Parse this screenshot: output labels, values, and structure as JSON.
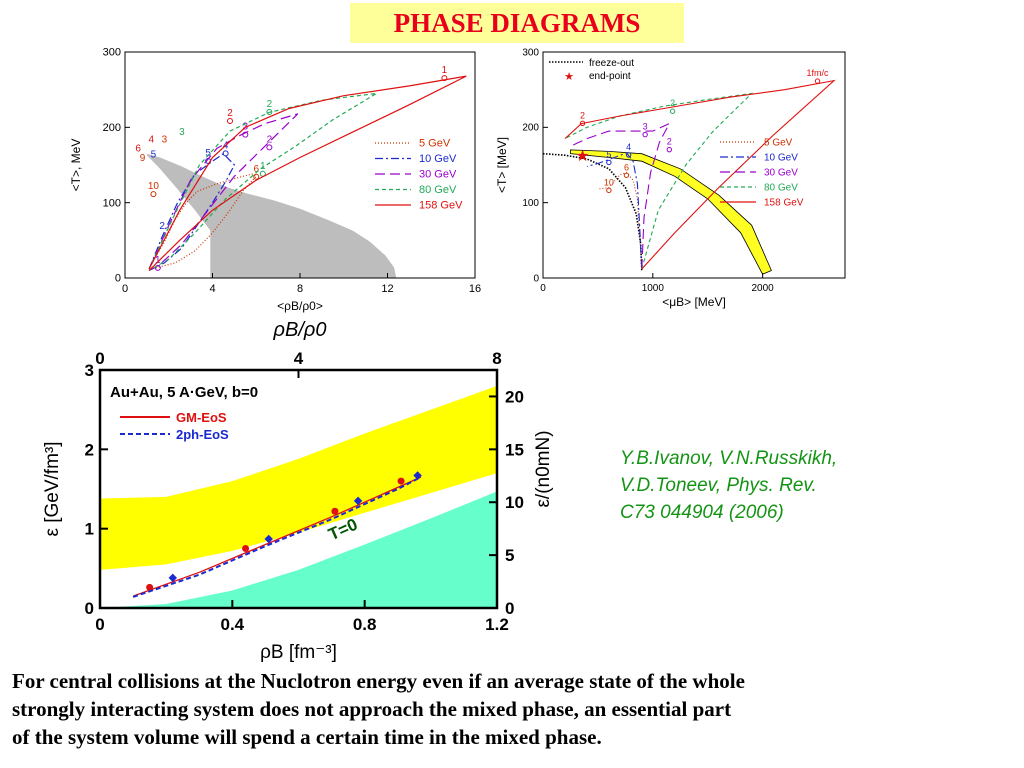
{
  "title": "PHASE DIAGRAMS",
  "citation": [
    "Y.B.Ivanov, V.N.Russkikh,",
    "V.D.Toneev, Phys. Rev.",
    "C73 044904 (2006)"
  ],
  "caption": [
    "For central collisions at the Nuclotron energy even if an average state of the whole",
    "strongly interacting system does not approach the mixed phase, an essential part",
    "of the system volume will spend a certain time in the mixed phase."
  ],
  "chart_data": [
    {
      "type": "line",
      "xlabel": "<ρB/ρ0>",
      "xlabel_big": "ρB/ρ0",
      "ylabel": "<T>, MeV",
      "xlim": [
        0,
        16
      ],
      "ylim": [
        0,
        300
      ],
      "xticks": [
        "0",
        "4",
        "8",
        "12",
        "16"
      ],
      "yticks": [
        "0",
        "100",
        "200",
        "300"
      ],
      "mixed_phase_region": [
        [
          1,
          165
        ],
        [
          1.6,
          160
        ],
        [
          2.6,
          148
        ],
        [
          3.6,
          134
        ],
        [
          4.6,
          121
        ],
        [
          5.6,
          112
        ],
        [
          6.8,
          103
        ],
        [
          8,
          92
        ],
        [
          9.2,
          78
        ],
        [
          10.4,
          63
        ],
        [
          11.2,
          48
        ],
        [
          11.9,
          30
        ],
        [
          12.3,
          14
        ],
        [
          12.4,
          0
        ],
        [
          3.9,
          0
        ],
        [
          3.9,
          63
        ],
        [
          3.2,
          90
        ],
        [
          2.4,
          118
        ],
        [
          1.6,
          145
        ],
        [
          1,
          163
        ]
      ],
      "series": [
        {
          "name": "5 GeV",
          "color": "#cc3300",
          "dash": "1,2",
          "points": [
            [
              1.2,
              18
            ],
            [
              1.8,
              48
            ],
            [
              2.3,
              78
            ],
            [
              2.8,
              100
            ],
            [
              3.3,
              115
            ],
            [
              4.1,
              124
            ],
            [
              5,
              132
            ],
            [
              5.8,
              138
            ],
            [
              6,
              135
            ],
            [
              5.4,
              116
            ],
            [
              4.8,
              90
            ],
            [
              4,
              60
            ],
            [
              3.2,
              36
            ],
            [
              2.3,
              20
            ],
            [
              1.2,
              12
            ]
          ],
          "labels": [
            {
              "t": "6",
              "x": 6,
              "y": 141
            },
            {
              "t": "10",
              "x": 1.3,
              "y": 118
            }
          ]
        },
        {
          "name": "10 GeV",
          "color": "#1a2ad0",
          "dash": "8,3,2,3",
          "points": [
            [
              1.1,
              12
            ],
            [
              1.7,
              55
            ],
            [
              2.4,
              100
            ],
            [
              3.2,
              138
            ],
            [
              4,
              155
            ],
            [
              4.5,
              165
            ],
            [
              5,
              150
            ],
            [
              4.6,
              128
            ],
            [
              4,
              100
            ],
            [
              3.3,
              70
            ],
            [
              2.6,
              40
            ],
            [
              1.8,
              20
            ],
            [
              1.1,
              10
            ]
          ],
          "labels": [
            {
              "t": "4",
              "x": 4.6,
              "y": 172
            },
            {
              "t": "5",
              "x": 3.8,
              "y": 162
            }
          ]
        },
        {
          "name": "30 GeV",
          "color": "#9900cc",
          "dash": "10,5",
          "points": [
            [
              1.1,
              12
            ],
            [
              2,
              70
            ],
            [
              3,
              130
            ],
            [
              4.2,
              172
            ],
            [
              5.3,
              190
            ],
            [
              6.4,
              205
            ],
            [
              7.9,
              218
            ],
            [
              6.5,
              178
            ],
            [
              5,
              135
            ],
            [
              3.8,
              90
            ],
            [
              2.6,
              45
            ],
            [
              1.6,
              18
            ],
            [
              1.1,
              10
            ]
          ],
          "labels": [
            {
              "t": "3",
              "x": 5.5,
              "y": 197
            },
            {
              "t": "2",
              "x": 6.6,
              "y": 180
            },
            {
              "t": "1",
              "x": 1.5,
              "y": 20
            }
          ]
        },
        {
          "name": "80 GeV",
          "color": "#22aa55",
          "dash": "4,3",
          "points": [
            [
              1.1,
              12
            ],
            [
              2.2,
              80
            ],
            [
              3.4,
              150
            ],
            [
              4.8,
              195
            ],
            [
              6.6,
              220
            ],
            [
              9,
              236
            ],
            [
              11.5,
              245
            ],
            [
              9.5,
              210
            ],
            [
              7.8,
              175
            ],
            [
              6.2,
              145
            ],
            [
              4.6,
              105
            ],
            [
              3.2,
              60
            ],
            [
              2,
              25
            ],
            [
              1.1,
              10
            ]
          ],
          "labels": [
            {
              "t": "2",
              "x": 6.6,
              "y": 227
            },
            {
              "t": "1",
              "x": 6.3,
              "y": 145
            }
          ]
        },
        {
          "name": "158 GeV",
          "color": "#e01010",
          "dash": "",
          "points": [
            [
              1.1,
              12
            ],
            [
              2.5,
              90
            ],
            [
              4,
              160
            ],
            [
              5.5,
              200
            ],
            [
              7.5,
              225
            ],
            [
              10,
              242
            ],
            [
              13,
              255
            ],
            [
              15.6,
              268
            ],
            [
              13,
              230
            ],
            [
              10.5,
              195
            ],
            [
              8,
              160
            ],
            [
              6,
              130
            ],
            [
              4,
              90
            ],
            [
              2.5,
              50
            ],
            [
              1.1,
              10
            ]
          ],
          "labels": [
            {
              "t": "1",
              "x": 14.6,
              "y": 272
            },
            {
              "t": "2",
              "x": 4.8,
              "y": 215
            }
          ]
        }
      ],
      "label_points": [
        {
          "t": "3",
          "x": 2.6,
          "y": 190,
          "c": "#22aa55"
        },
        {
          "t": "4",
          "x": 1.2,
          "y": 180,
          "c": "#e01010"
        },
        {
          "t": "5",
          "x": 1.3,
          "y": 160,
          "c": "#1a2ad0"
        },
        {
          "t": "9",
          "x": 0.8,
          "y": 155,
          "c": "#cc3300"
        },
        {
          "t": "6",
          "x": 0.6,
          "y": 168,
          "c": "#e01010"
        },
        {
          "t": "3",
          "x": 1.8,
          "y": 180,
          "c": "#cc3300"
        },
        {
          "t": "2",
          "x": 1.7,
          "y": 65,
          "c": "#1a2ad0"
        }
      ]
    },
    {
      "type": "line",
      "xlabel": "<μB> [MeV]",
      "ylabel": "<T> [MeV]",
      "xlim": [
        0,
        2750
      ],
      "ylim": [
        0,
        300
      ],
      "xticks": [
        "0",
        "1000",
        "2000"
      ],
      "yticks": [
        "0",
        "100",
        "200",
        "300"
      ],
      "legend_extra": [
        {
          "name": "freeze-out",
          "style": "dotted"
        },
        {
          "name": "end-point",
          "style": "star"
        }
      ],
      "series": [
        {
          "name": "5 GeV",
          "color": "#cc3300",
          "dash": "1,2",
          "points": [
            [
              900,
              12
            ],
            [
              880,
              60
            ],
            [
              860,
              105
            ],
            [
              820,
              130
            ],
            [
              760,
              140
            ],
            [
              700,
              137
            ],
            [
              600,
              120
            ],
            [
              500,
              118
            ]
          ],
          "labels": [
            {
              "t": "6",
              "x": 760,
              "y": 143
            },
            {
              "t": "10",
              "x": 600,
              "y": 123
            }
          ]
        },
        {
          "name": "10 GeV",
          "color": "#1a2ad0",
          "dash": "8,3,2,3",
          "points": [
            [
              900,
              12
            ],
            [
              880,
              70
            ],
            [
              860,
              125
            ],
            [
              820,
              155
            ],
            [
              760,
              166
            ],
            [
              650,
              160
            ],
            [
              500,
              152
            ],
            [
              400,
              148
            ]
          ],
          "labels": [
            {
              "t": "4",
              "x": 780,
              "y": 170
            },
            {
              "t": "5",
              "x": 600,
              "y": 160
            }
          ]
        },
        {
          "name": "30 GeV",
          "color": "#9900cc",
          "dash": "10,5",
          "points": [
            [
              900,
              12
            ],
            [
              920,
              80
            ],
            [
              980,
              140
            ],
            [
              1060,
              180
            ],
            [
              1150,
              205
            ],
            [
              1000,
              195
            ],
            [
              800,
              195
            ],
            [
              600,
              195
            ],
            [
              400,
              185
            ],
            [
              250,
              175
            ]
          ],
          "labels": [
            {
              "t": "3",
              "x": 930,
              "y": 197
            },
            {
              "t": "2",
              "x": 1150,
              "y": 177
            }
          ]
        },
        {
          "name": "80 GeV",
          "color": "#22aa55",
          "dash": "4,3",
          "points": [
            [
              900,
              12
            ],
            [
              1050,
              90
            ],
            [
              1300,
              150
            ],
            [
              1550,
              195
            ],
            [
              1900,
              245
            ],
            [
              1500,
              237
            ],
            [
              1100,
              228
            ],
            [
              700,
              215
            ],
            [
              400,
              200
            ],
            [
              200,
              185
            ]
          ],
          "labels": [
            {
              "t": "2",
              "x": 1180,
              "y": 228
            }
          ]
        },
        {
          "name": "158 GeV",
          "color": "#e01010",
          "dash": "",
          "points": [
            [
              900,
              12
            ],
            [
              1200,
              60
            ],
            [
              1600,
              120
            ],
            [
              2100,
              190
            ],
            [
              2650,
              262
            ],
            [
              2200,
              250
            ],
            [
              1700,
              240
            ],
            [
              1100,
              225
            ],
            [
              700,
              215
            ],
            [
              350,
              205
            ],
            [
              200,
              185
            ]
          ],
          "labels": [
            {
              "t": "1fm/c",
              "x": 2500,
              "y": 268
            },
            {
              "t": "2",
              "x": 360,
              "y": 212
            }
          ]
        }
      ],
      "freeze_out": [
        [
          0,
          165
        ],
        [
          200,
          163
        ],
        [
          400,
          158
        ],
        [
          600,
          145
        ],
        [
          750,
          120
        ],
        [
          850,
          85
        ],
        [
          890,
          45
        ],
        [
          900,
          10
        ]
      ],
      "end_point": [
        360,
        163
      ],
      "band_outer": [
        [
          250,
          170
        ],
        [
          600,
          168
        ],
        [
          900,
          165
        ],
        [
          1250,
          145
        ],
        [
          1600,
          110
        ],
        [
          1900,
          70
        ],
        [
          2080,
          10
        ]
      ],
      "band_inner": [
        [
          2000,
          5
        ],
        [
          1800,
          60
        ],
        [
          1500,
          105
        ],
        [
          1200,
          135
        ],
        [
          900,
          155
        ],
        [
          600,
          160
        ],
        [
          250,
          165
        ]
      ]
    },
    {
      "type": "line",
      "title": "Au+Au, 5 A·GeV, b=0",
      "xlabel": "ρB [fm⁻³]",
      "ylabel": "ε [GeV/fm³]",
      "y2label": "ε/(n0mN)",
      "xlim": [
        0,
        1.2
      ],
      "ylim": [
        0,
        3
      ],
      "xticks": [
        "0",
        "0.4",
        "0.8",
        "1.2"
      ],
      "yticks": [
        "0",
        "1",
        "2",
        "3"
      ],
      "top_ticks": [
        "0",
        "4",
        "8"
      ],
      "right_ticks": [
        "0",
        "5",
        "10",
        "15",
        "20"
      ],
      "band_upper": [
        [
          0,
          1.38
        ],
        [
          0.2,
          1.4
        ],
        [
          0.4,
          1.6
        ],
        [
          0.6,
          1.88
        ],
        [
          0.8,
          2.2
        ],
        [
          1,
          2.5
        ],
        [
          1.2,
          2.8
        ]
      ],
      "band_lower": [
        [
          0,
          0.48
        ],
        [
          0.2,
          0.55
        ],
        [
          0.4,
          0.72
        ],
        [
          0.6,
          0.95
        ],
        [
          0.8,
          1.2
        ],
        [
          1,
          1.45
        ],
        [
          1.2,
          1.7
        ]
      ],
      "t0_region": [
        [
          0,
          0
        ],
        [
          0.2,
          0.05
        ],
        [
          0.4,
          0.22
        ],
        [
          0.6,
          0.48
        ],
        [
          0.8,
          0.8
        ],
        [
          1,
          1.13
        ],
        [
          1.2,
          1.47
        ],
        [
          1.2,
          0
        ],
        [
          0,
          0
        ]
      ],
      "t0_label": "T=0",
      "series": [
        {
          "name": "GM-EoS",
          "color": "#e01010",
          "dash": "",
          "points": [
            [
              0.15,
              0.26
            ],
            [
              0.44,
              0.75
            ],
            [
              0.71,
              1.22
            ],
            [
              0.91,
              1.6
            ]
          ],
          "line": [
            [
              0.1,
              0.15
            ],
            [
              0.3,
              0.45
            ],
            [
              0.5,
              0.8
            ],
            [
              0.7,
              1.15
            ],
            [
              0.9,
              1.52
            ],
            [
              0.97,
              1.65
            ]
          ]
        },
        {
          "name": "2ph-EoS",
          "color": "#1a2ad0",
          "dash": "5,3",
          "points": [
            [
              0.22,
              0.38
            ],
            [
              0.51,
              0.87
            ],
            [
              0.78,
              1.35
            ],
            [
              0.96,
              1.67
            ]
          ],
          "line": [
            [
              0.1,
              0.14
            ],
            [
              0.3,
              0.42
            ],
            [
              0.5,
              0.78
            ],
            [
              0.7,
              1.12
            ],
            [
              0.9,
              1.5
            ],
            [
              0.97,
              1.65
            ]
          ]
        }
      ]
    }
  ]
}
